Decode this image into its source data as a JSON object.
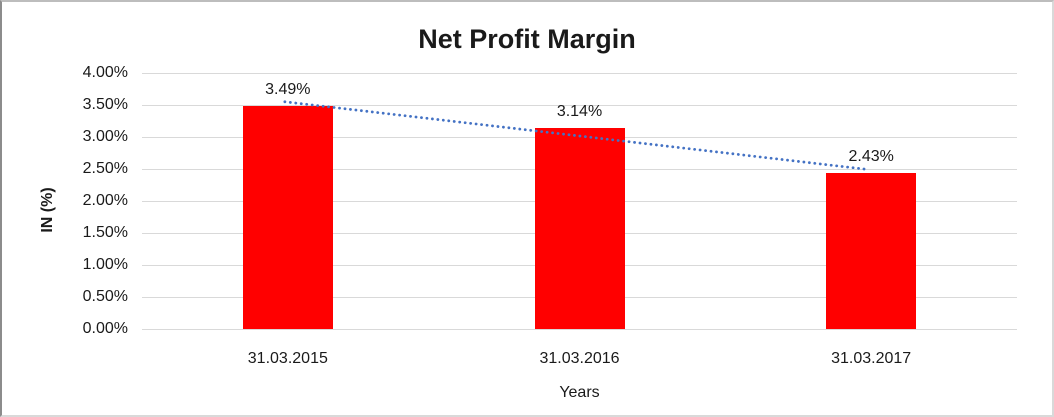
{
  "chart_data": {
    "type": "bar",
    "title": "Net Profit Margin",
    "categories": [
      "31.03.2015",
      "31.03.2016",
      "31.03.2017"
    ],
    "values": [
      3.49,
      3.14,
      2.43
    ],
    "data_labels": [
      "3.49%",
      "3.14%",
      "2.43%"
    ],
    "xlabel": "Years",
    "ylabel": "IN (%)",
    "ylim": [
      0,
      4
    ],
    "ytick_step": 0.5,
    "ytick_labels": [
      "0.00%",
      "0.50%",
      "1.00%",
      "1.50%",
      "2.00%",
      "2.50%",
      "3.00%",
      "3.50%",
      "4.00%"
    ],
    "grid": true,
    "legend_position": "none",
    "bar_color": "#FF0000",
    "gridline_color": "#D9D9D9",
    "text_color": "#1A1A1A",
    "trendline": {
      "type": "linear",
      "style": "dotted",
      "color": "#4472C4"
    }
  }
}
